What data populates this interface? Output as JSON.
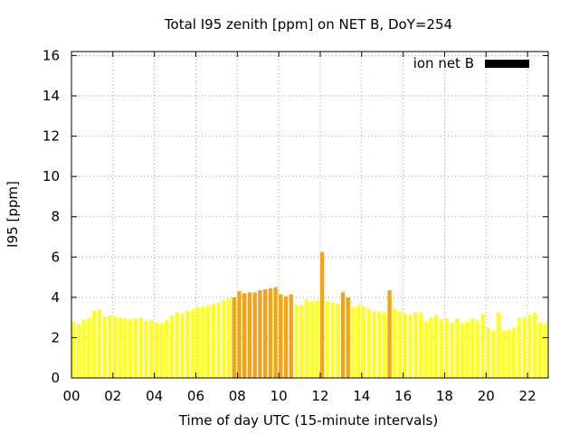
{
  "chart_data": {
    "type": "bar",
    "title": "Total I95 zenith [ppm] on NET B, DoY=254",
    "xlabel": "Time of day UTC (15-minute intervals)",
    "ylabel": "I95 [ppm]",
    "xlim": [
      0,
      23
    ],
    "ylim": [
      0,
      16.2
    ],
    "x_ticks": [
      0,
      2,
      4,
      6,
      8,
      10,
      12,
      14,
      16,
      18,
      20,
      22
    ],
    "x_tick_labels": [
      "00",
      "02",
      "04",
      "06",
      "08",
      "10",
      "12",
      "14",
      "16",
      "18",
      "20",
      "22"
    ],
    "y_ticks": [
      0,
      2,
      4,
      6,
      8,
      10,
      12,
      14,
      16
    ],
    "y_tick_labels": [
      "0",
      "2",
      "4",
      "6",
      "8",
      "10",
      "12",
      "14",
      "16"
    ],
    "grid": true,
    "legend": {
      "label": "ion net B",
      "position": "top-right",
      "color": "#000000"
    },
    "colors": {
      "low": "#ffff22",
      "high": "#f5a316"
    },
    "bar_width_hours": 0.19,
    "series": [
      {
        "x": [
          0,
          0.25,
          0.5,
          0.75,
          1,
          1.25,
          1.5,
          1.75,
          2,
          2.25,
          2.5,
          2.75,
          3,
          3.25,
          3.5,
          3.75,
          4,
          4.25,
          4.5,
          4.75,
          5,
          5.25,
          5.5,
          5.75,
          6,
          6.25,
          6.5,
          6.75,
          7,
          7.25,
          7.5,
          7.75,
          8,
          8.25,
          8.5,
          8.75,
          9,
          9.25,
          9.5,
          9.75,
          10,
          10.25,
          10.5,
          10.75,
          11,
          11.25,
          11.5,
          11.75,
          12,
          12.25,
          12.5,
          12.75,
          13,
          13.25,
          13.5,
          13.75,
          14,
          14.25,
          14.5,
          14.75,
          15,
          15.25,
          15.5,
          15.75,
          16,
          16.25,
          16.5,
          16.75,
          17,
          17.25,
          17.5,
          17.75,
          18,
          18.25,
          18.5,
          18.75,
          19,
          19.25,
          19.5,
          19.75,
          20,
          20.25,
          20.5,
          20.75,
          21,
          21.25,
          21.5,
          21.75,
          22,
          22.25,
          22.5,
          22.75
        ],
        "values": [
          2.8,
          2.65,
          2.9,
          2.95,
          3.35,
          3.4,
          3.05,
          3.1,
          3.05,
          3.0,
          2.95,
          2.9,
          2.95,
          3.0,
          2.85,
          2.9,
          2.75,
          2.7,
          2.85,
          3.1,
          3.25,
          3.2,
          3.35,
          3.4,
          3.5,
          3.55,
          3.6,
          3.65,
          3.75,
          3.85,
          3.95,
          4.0,
          4.3,
          4.2,
          4.25,
          4.25,
          4.35,
          4.4,
          4.45,
          4.5,
          4.15,
          4.05,
          4.15,
          3.65,
          3.6,
          3.9,
          3.8,
          3.85,
          6.25,
          3.8,
          3.75,
          3.7,
          4.25,
          4.0,
          3.55,
          3.6,
          3.55,
          3.45,
          3.3,
          3.3,
          3.25,
          4.35,
          3.45,
          3.3,
          3.2,
          3.15,
          3.25,
          3.25,
          2.8,
          3.0,
          3.1,
          2.9,
          2.95,
          2.75,
          2.95,
          2.7,
          2.8,
          2.95,
          2.85,
          3.2,
          2.5,
          2.35,
          3.25,
          2.35,
          2.4,
          2.5,
          2.95,
          3.0,
          3.15,
          3.25,
          2.75,
          2.7
        ]
      }
    ]
  }
}
